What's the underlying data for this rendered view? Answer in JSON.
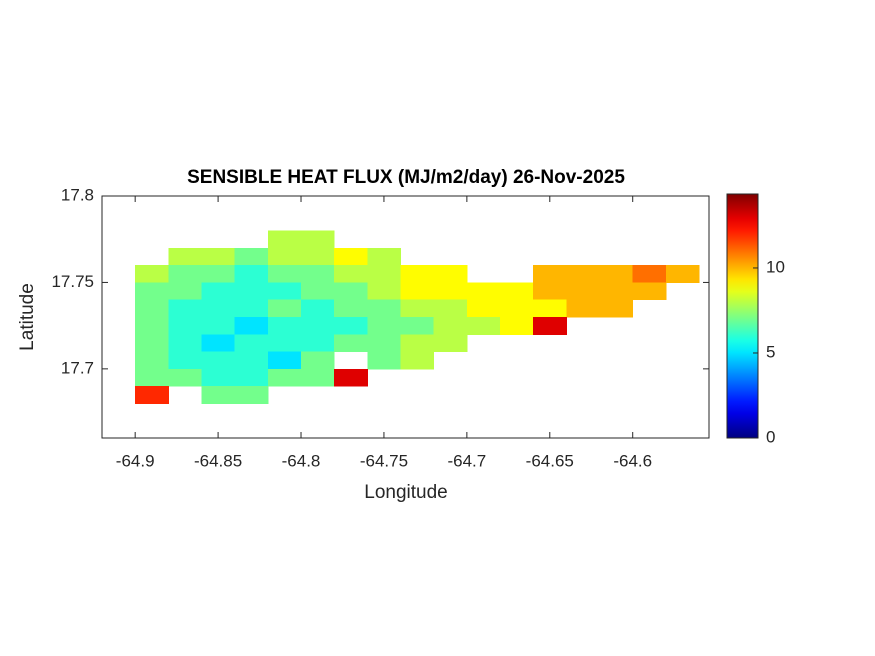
{
  "chart_data": {
    "type": "heatmap",
    "title": "SENSIBLE HEAT FLUX (MJ/m2/day) 26-Nov-2025",
    "x_label": "Longitude",
    "y_label": "Latitude",
    "xlim": [
      -64.92,
      -64.554
    ],
    "ylim": [
      17.66,
      17.8
    ],
    "xticks": [
      -64.9,
      -64.85,
      -64.8,
      -64.75,
      -64.7,
      -64.65,
      -64.6
    ],
    "yticks": [
      17.7,
      17.75,
      17.8
    ],
    "x": [
      -64.89,
      -64.87,
      -64.85,
      -64.83,
      -64.81,
      -64.79,
      -64.77,
      -64.75,
      -64.73,
      -64.71,
      -64.69,
      -64.67,
      -64.65,
      -64.63,
      -64.61,
      -64.59,
      -64.57
    ],
    "y": [
      17.775,
      17.765,
      17.755,
      17.745,
      17.735,
      17.725,
      17.715,
      17.705,
      17.695,
      17.685
    ],
    "values": [
      [
        null,
        null,
        null,
        null,
        8,
        8,
        null,
        null,
        null,
        null,
        null,
        null,
        null,
        null,
        null,
        null,
        null
      ],
      [
        null,
        8,
        8,
        7,
        8,
        8,
        9,
        8,
        null,
        null,
        null,
        null,
        null,
        null,
        null,
        null,
        null
      ],
      [
        8,
        7,
        7,
        6,
        7,
        7,
        8,
        8,
        9,
        9,
        null,
        null,
        10,
        10,
        10,
        11,
        10
      ],
      [
        7,
        7,
        6,
        6,
        6,
        7,
        7,
        8,
        9,
        9,
        9,
        9,
        10,
        10,
        10,
        10,
        null
      ],
      [
        7,
        6,
        6,
        6,
        7,
        6,
        7,
        7,
        8,
        8,
        9,
        9,
        9,
        10,
        10,
        null,
        null
      ],
      [
        7,
        6,
        6,
        5,
        6,
        6,
        6,
        7,
        7,
        8,
        8,
        9,
        13,
        null,
        null,
        null,
        null
      ],
      [
        7,
        6,
        5,
        6,
        6,
        6,
        7,
        7,
        8,
        8,
        null,
        null,
        null,
        null,
        null,
        null,
        null
      ],
      [
        7,
        6,
        6,
        6,
        5,
        7,
        null,
        7,
        8,
        null,
        null,
        null,
        null,
        null,
        null,
        null,
        null
      ],
      [
        7,
        7,
        6,
        6,
        7,
        7,
        13,
        null,
        null,
        null,
        null,
        null,
        null,
        null,
        null,
        null,
        null
      ],
      [
        12,
        null,
        7,
        7,
        null,
        null,
        null,
        null,
        null,
        null,
        null,
        null,
        null,
        null,
        null,
        null,
        null
      ]
    ],
    "colormap": "jet",
    "colorbar": {
      "clim": [
        0,
        14.35
      ],
      "ticks": [
        0,
        5,
        10
      ]
    }
  }
}
